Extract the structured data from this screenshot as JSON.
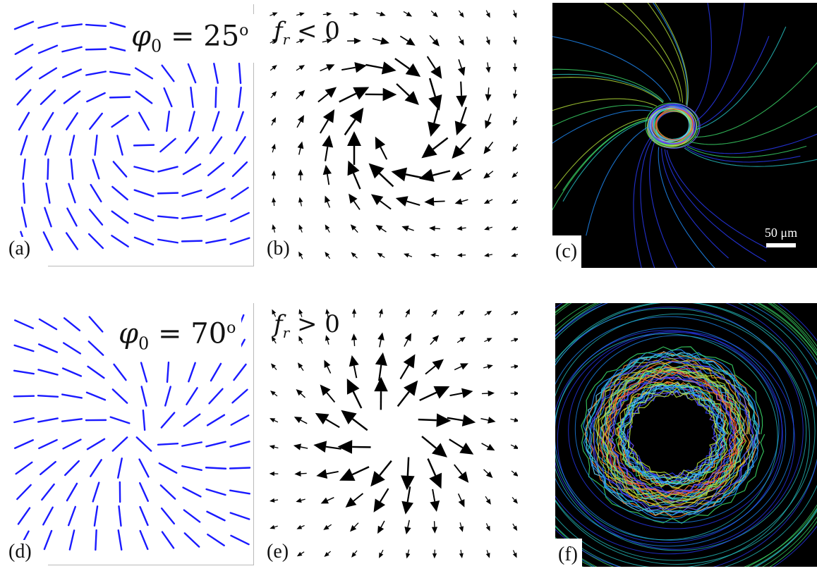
{
  "panels": {
    "a": {
      "label": "(a)",
      "phi_equation": {
        "symbol": "φ",
        "sub": "0",
        "rest": " = 25",
        "deg": "o"
      }
    },
    "b": {
      "label": "(b)",
      "f_equation": {
        "symbol": "f",
        "sub": "r",
        "rest": " < 0"
      }
    },
    "c": {
      "label": "(c)",
      "scale_text": "50 μm"
    },
    "d": {
      "label": "(d)",
      "phi_equation": {
        "symbol": "φ",
        "sub": "0",
        "rest": " = 70",
        "deg": "o"
      }
    },
    "e": {
      "label": "(e)",
      "f_equation": {
        "symbol": "f",
        "sub": "r",
        "rest": " > 0"
      }
    },
    "f": {
      "label": "(f)"
    }
  },
  "field_params": {
    "top_phi_deg": 25,
    "bottom_phi_deg": 70,
    "top_arrow_sign": -1,
    "bottom_arrow_sign": 1
  },
  "colors": {
    "director": "#1a1aff",
    "arrow": "#000000",
    "microscopy_bg": "#000000"
  }
}
